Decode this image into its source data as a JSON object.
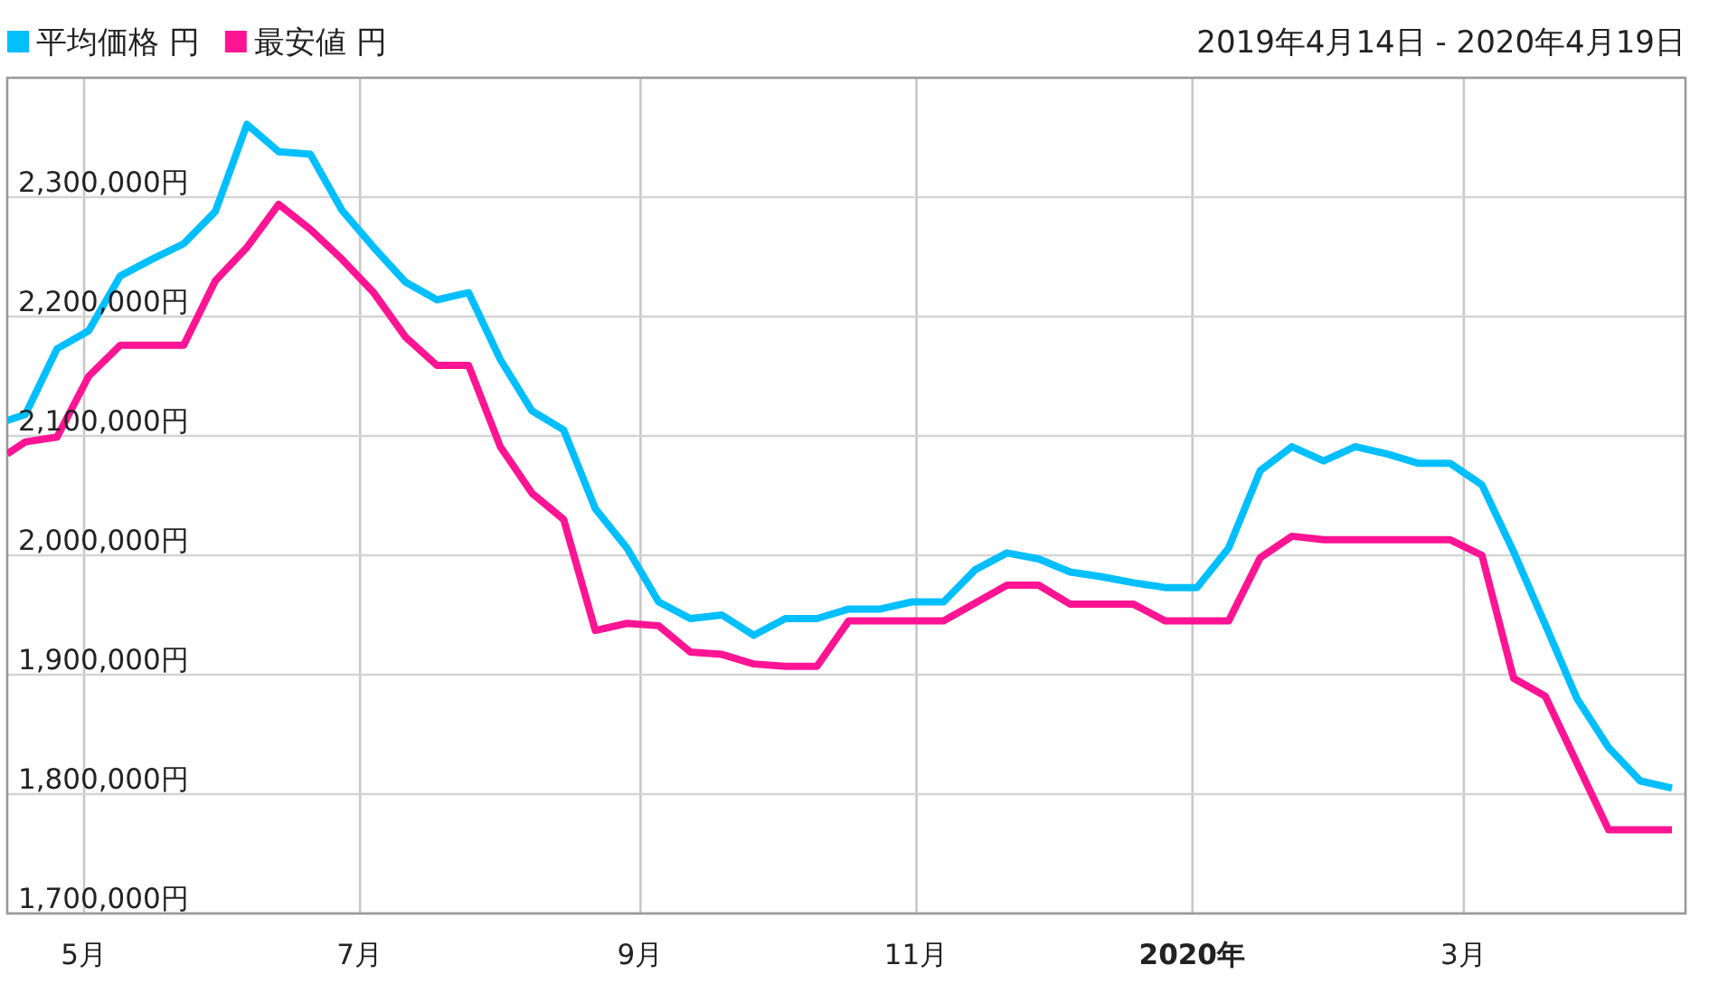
{
  "chart_data": {
    "type": "line",
    "subtitle": "2019年4月14日 - 2020年4月19日",
    "x": [
      "2019-04-14",
      "2019-04-18",
      "2019-04-25",
      "2019-05-02",
      "2019-05-09",
      "2019-05-16",
      "2019-05-23",
      "2019-05-30",
      "2019-06-06",
      "2019-06-13",
      "2019-06-20",
      "2019-06-27",
      "2019-07-04",
      "2019-07-11",
      "2019-07-18",
      "2019-07-25",
      "2019-08-01",
      "2019-08-08",
      "2019-08-15",
      "2019-08-22",
      "2019-08-29",
      "2019-09-05",
      "2019-09-12",
      "2019-09-19",
      "2019-09-26",
      "2019-10-03",
      "2019-10-10",
      "2019-10-17",
      "2019-10-24",
      "2019-10-31",
      "2019-11-07",
      "2019-11-14",
      "2019-11-21",
      "2019-11-28",
      "2019-12-05",
      "2019-12-12",
      "2019-12-19",
      "2019-12-26",
      "2020-01-02",
      "2020-01-09",
      "2020-01-16",
      "2020-01-23",
      "2020-01-30",
      "2020-02-06",
      "2020-02-13",
      "2020-02-20",
      "2020-02-27",
      "2020-03-05",
      "2020-03-12",
      "2020-03-19",
      "2020-03-26",
      "2020-04-02",
      "2020-04-09",
      "2020-04-16"
    ],
    "series": [
      {
        "name": "平均価格 円",
        "color": "#00bfff",
        "values": [
          2113000,
          2118000,
          2173000,
          2188000,
          2234000,
          2248000,
          2261000,
          2288000,
          2361000,
          2338000,
          2336000,
          2289000,
          2258000,
          2229000,
          2214000,
          2220000,
          2164000,
          2121000,
          2105000,
          2039000,
          2006000,
          1961000,
          1947000,
          1950000,
          1933000,
          1947000,
          1947000,
          1955000,
          1955000,
          1961000,
          1961000,
          1988000,
          2002000,
          1997000,
          1986000,
          1982000,
          1977000,
          1973000,
          1973000,
          2006000,
          2071000,
          2091000,
          2079000,
          2091000,
          2085000,
          2077000,
          2077000,
          2059000,
          2003000,
          1942000,
          1880000,
          1839000,
          1811000,
          1805000
        ]
      },
      {
        "name": "最安値 円",
        "color": "#ff1493",
        "values": [
          2085000,
          2095000,
          2099000,
          2150000,
          2176000,
          2176000,
          2176000,
          2230000,
          2258000,
          2294000,
          2273000,
          2248000,
          2220000,
          2183000,
          2159000,
          2159000,
          2091000,
          2052000,
          2030000,
          1937000,
          1943000,
          1941000,
          1919000,
          1917000,
          1909000,
          1907000,
          1907000,
          1945000,
          1945000,
          1945000,
          1945000,
          1960000,
          1975000,
          1975000,
          1959000,
          1959000,
          1959000,
          1945000,
          1945000,
          1945000,
          1998000,
          2016000,
          2013000,
          2013000,
          2013000,
          2013000,
          2013000,
          2000000,
          1897000,
          1882000,
          1826000,
          1770000,
          1770000,
          1770000
        ]
      }
    ],
    "xlim": [
      "2019-04-14",
      "2020-04-19"
    ],
    "xticks": [
      {
        "value": "2019-05-01",
        "label": "5月"
      },
      {
        "value": "2019-07-01",
        "label": "7月"
      },
      {
        "value": "2019-09-01",
        "label": "9月"
      },
      {
        "value": "2019-11-01",
        "label": "11月"
      },
      {
        "value": "2020-01-01",
        "label": "2020年"
      },
      {
        "value": "2020-03-01",
        "label": "3月"
      }
    ],
    "ylim": [
      1700000,
      2400000
    ],
    "yticks": [
      {
        "value": 1700000,
        "label": "1,700,000円"
      },
      {
        "value": 1800000,
        "label": "1,800,000円"
      },
      {
        "value": 1900000,
        "label": "1,900,000円"
      },
      {
        "value": 2000000,
        "label": "2,000,000円"
      },
      {
        "value": 2100000,
        "label": "2,100,000円"
      },
      {
        "value": 2200000,
        "label": "2,200,000円"
      },
      {
        "value": 2300000,
        "label": "2,300,000円"
      }
    ],
    "grid": true,
    "legend": "top left",
    "line_style": "solid",
    "marker": "none"
  }
}
